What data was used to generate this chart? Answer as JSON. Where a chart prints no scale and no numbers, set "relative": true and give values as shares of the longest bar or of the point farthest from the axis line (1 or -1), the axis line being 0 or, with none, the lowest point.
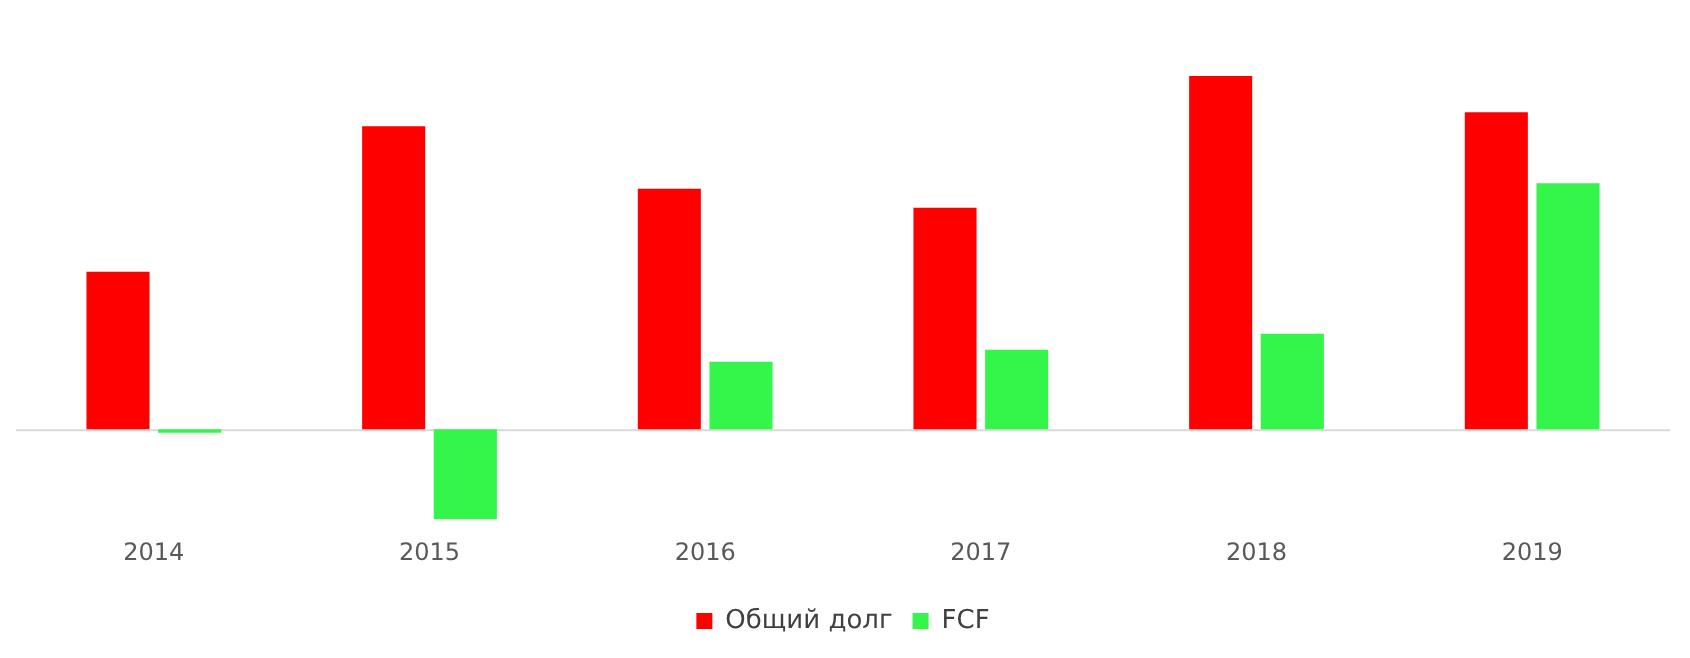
{
  "chart_data": {
    "type": "bar",
    "relative": true,
    "categories": [
      "2014",
      "2015",
      "2016",
      "2017",
      "2018",
      "2019"
    ],
    "series": [
      {
        "name": "Общий долг",
        "color": "#ff0000",
        "values": [
          0.446,
          0.858,
          0.681,
          0.627,
          1,
          0.897
        ]
      },
      {
        "name": "FCF",
        "color": "#33f54a",
        "values": [
          -0.01,
          -0.255,
          0.191,
          0.225,
          0.27,
          0.696
        ]
      }
    ],
    "legend": "bottom",
    "grid": false
  }
}
